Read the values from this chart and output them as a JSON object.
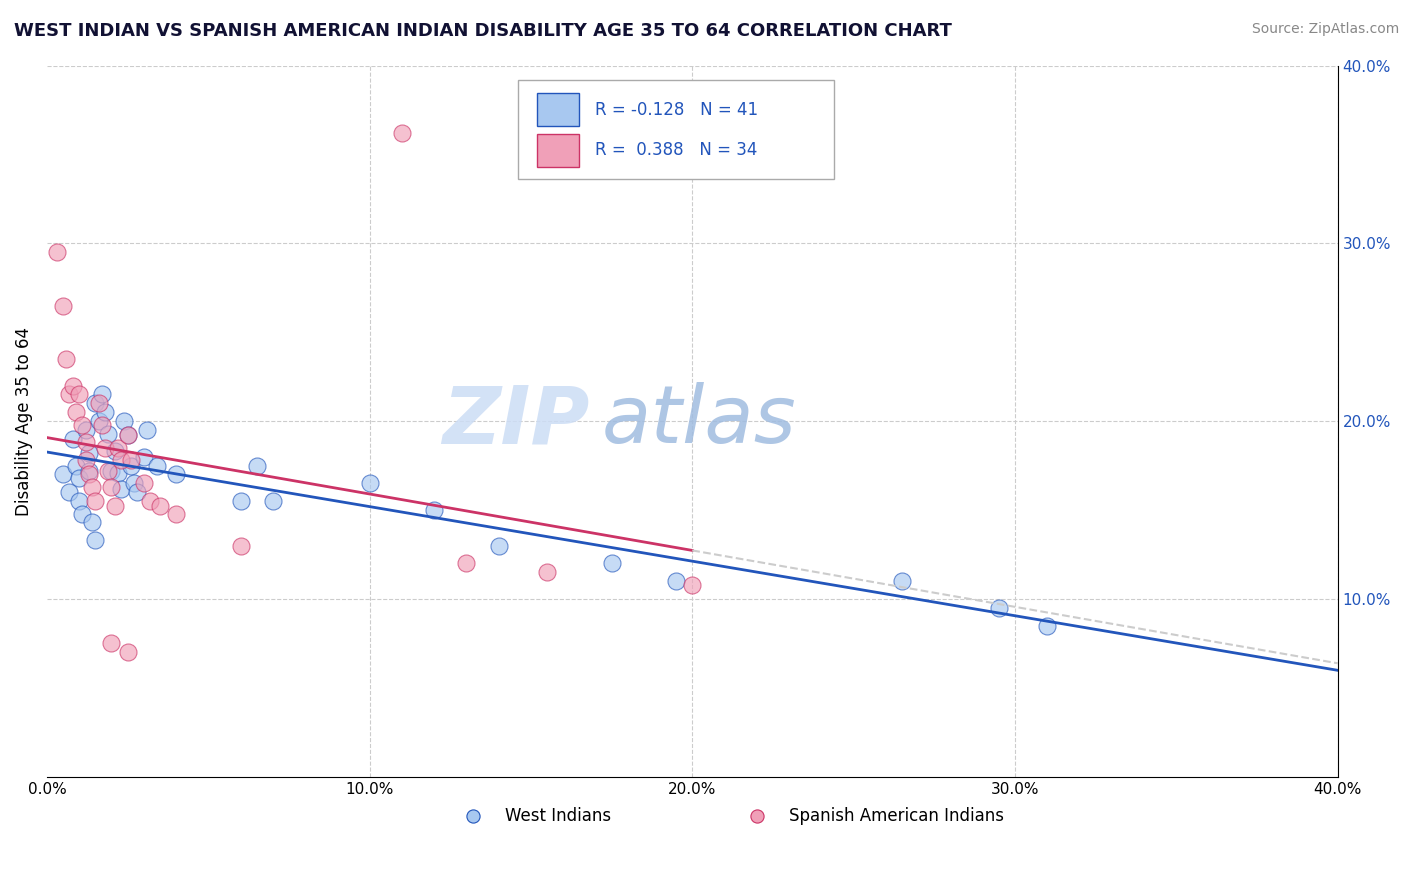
{
  "title": "WEST INDIAN VS SPANISH AMERICAN INDIAN DISABILITY AGE 35 TO 64 CORRELATION CHART",
  "source": "Source: ZipAtlas.com",
  "ylabel": "Disability Age 35 to 64",
  "legend_label1": "West Indians",
  "legend_label2": "Spanish American Indians",
  "r1": -0.128,
  "n1": 41,
  "r2": 0.388,
  "n2": 34,
  "xlim": [
    0.0,
    0.4
  ],
  "ylim": [
    0.0,
    0.4
  ],
  "ytick_labels": [
    "10.0%",
    "20.0%",
    "30.0%",
    "40.0%"
  ],
  "ytick_values": [
    0.1,
    0.2,
    0.3,
    0.4
  ],
  "xtick_values": [
    0.0,
    0.1,
    0.2,
    0.3,
    0.4
  ],
  "xtick_labels": [
    "0.0%",
    "10.0%",
    "20.0%",
    "30.0%",
    "40.0%"
  ],
  "color_blue": "#a8c8f0",
  "color_pink": "#f0a0b8",
  "trendline_blue": "#2255bb",
  "trendline_pink": "#cc3366",
  "watermark_zip": "ZIP",
  "watermark_atlas": "atlas",
  "blue_scatter": [
    [
      0.005,
      0.17
    ],
    [
      0.007,
      0.16
    ],
    [
      0.008,
      0.19
    ],
    [
      0.009,
      0.175
    ],
    [
      0.01,
      0.155
    ],
    [
      0.01,
      0.168
    ],
    [
      0.011,
      0.148
    ],
    [
      0.012,
      0.195
    ],
    [
      0.013,
      0.182
    ],
    [
      0.013,
      0.172
    ],
    [
      0.014,
      0.143
    ],
    [
      0.015,
      0.133
    ],
    [
      0.015,
      0.21
    ],
    [
      0.016,
      0.2
    ],
    [
      0.017,
      0.215
    ],
    [
      0.018,
      0.205
    ],
    [
      0.019,
      0.193
    ],
    [
      0.02,
      0.172
    ],
    [
      0.021,
      0.183
    ],
    [
      0.022,
      0.171
    ],
    [
      0.023,
      0.162
    ],
    [
      0.024,
      0.2
    ],
    [
      0.025,
      0.192
    ],
    [
      0.026,
      0.175
    ],
    [
      0.027,
      0.165
    ],
    [
      0.028,
      0.16
    ],
    [
      0.03,
      0.18
    ],
    [
      0.031,
      0.195
    ],
    [
      0.034,
      0.175
    ],
    [
      0.04,
      0.17
    ],
    [
      0.06,
      0.155
    ],
    [
      0.065,
      0.175
    ],
    [
      0.07,
      0.155
    ],
    [
      0.1,
      0.165
    ],
    [
      0.12,
      0.15
    ],
    [
      0.14,
      0.13
    ],
    [
      0.175,
      0.12
    ],
    [
      0.195,
      0.11
    ],
    [
      0.265,
      0.11
    ],
    [
      0.295,
      0.095
    ],
    [
      0.31,
      0.085
    ]
  ],
  "pink_scatter": [
    [
      0.003,
      0.295
    ],
    [
      0.005,
      0.265
    ],
    [
      0.006,
      0.235
    ],
    [
      0.007,
      0.215
    ],
    [
      0.008,
      0.22
    ],
    [
      0.009,
      0.205
    ],
    [
      0.01,
      0.215
    ],
    [
      0.011,
      0.198
    ],
    [
      0.012,
      0.188
    ],
    [
      0.012,
      0.178
    ],
    [
      0.013,
      0.17
    ],
    [
      0.014,
      0.163
    ],
    [
      0.015,
      0.155
    ],
    [
      0.016,
      0.21
    ],
    [
      0.017,
      0.198
    ],
    [
      0.018,
      0.185
    ],
    [
      0.019,
      0.172
    ],
    [
      0.02,
      0.163
    ],
    [
      0.021,
      0.152
    ],
    [
      0.022,
      0.185
    ],
    [
      0.023,
      0.178
    ],
    [
      0.025,
      0.192
    ],
    [
      0.026,
      0.178
    ],
    [
      0.03,
      0.165
    ],
    [
      0.032,
      0.155
    ],
    [
      0.035,
      0.152
    ],
    [
      0.04,
      0.148
    ],
    [
      0.06,
      0.13
    ],
    [
      0.11,
      0.362
    ],
    [
      0.13,
      0.12
    ],
    [
      0.155,
      0.115
    ],
    [
      0.2,
      0.108
    ],
    [
      0.02,
      0.075
    ],
    [
      0.025,
      0.07
    ]
  ]
}
